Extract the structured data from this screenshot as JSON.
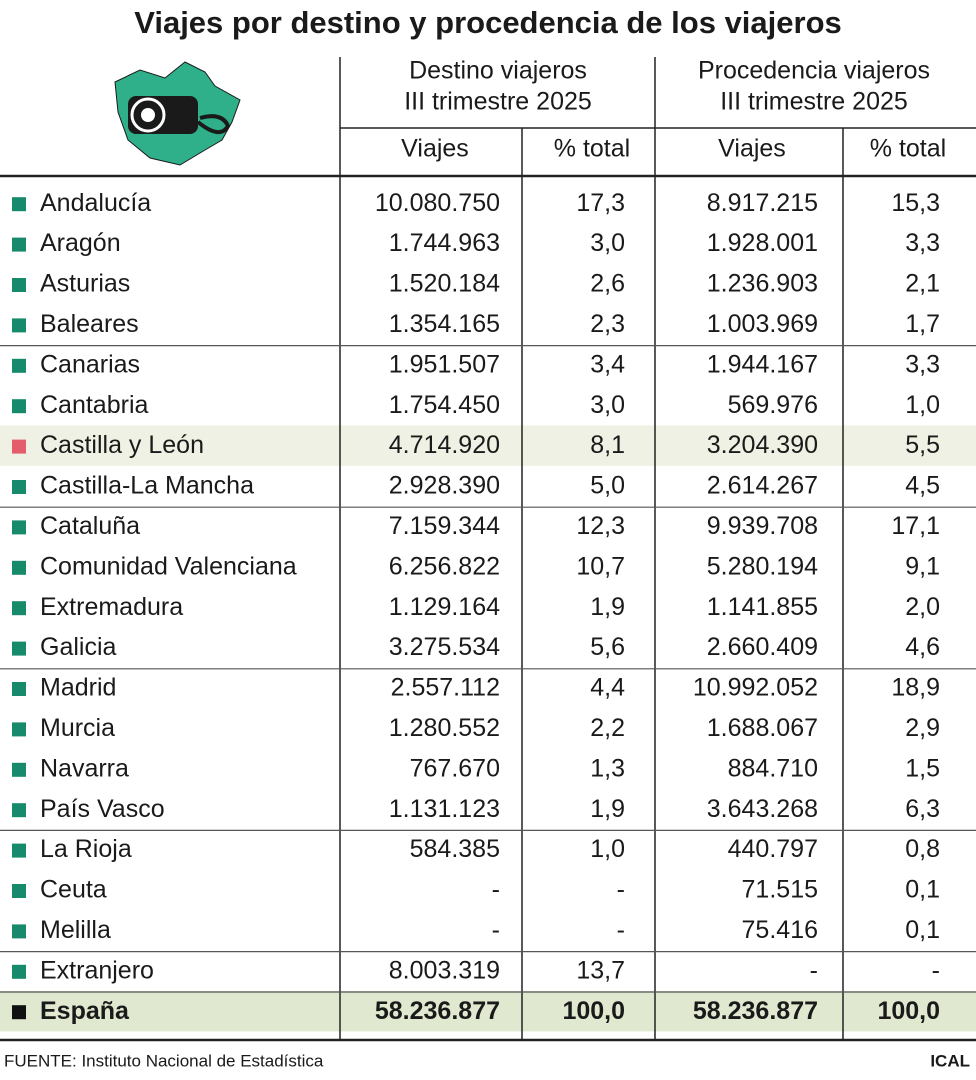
{
  "title": "Viajes por destino y procedencia de los viajeros",
  "table": {
    "groups": [
      {
        "title": "Destino viajeros",
        "subtitle": "III trimestre 2025"
      },
      {
        "title": "Procedencia viajeros",
        "subtitle": "III trimestre 2025"
      }
    ],
    "columns": [
      "Viajes",
      "% total",
      "Viajes",
      "% total"
    ],
    "rows": [
      [
        "Andalucía",
        "10.080.750",
        "17,3",
        "8.917.215",
        "15,3"
      ],
      [
        "Aragón",
        "1.744.963",
        "3,0",
        "1.928.001",
        "3,3"
      ],
      [
        "Asturias",
        "1.520.184",
        "2,6",
        "1.236.903",
        "2,1"
      ],
      [
        "Baleares",
        "1.354.165",
        "2,3",
        "1.003.969",
        "1,7"
      ],
      [
        "Canarias",
        "1.951.507",
        "3,4",
        "1.944.167",
        "3,3"
      ],
      [
        "Cantabria",
        "1.754.450",
        "3,0",
        "569.976",
        "1,0"
      ],
      [
        "Castilla y León",
        "4.714.920",
        "8,1",
        "3.204.390",
        "5,5"
      ],
      [
        "Castilla-La Mancha",
        "2.928.390",
        "5,0",
        "2.614.267",
        "4,5"
      ],
      [
        "Cataluña",
        "7.159.344",
        "12,3",
        "9.939.708",
        "17,1"
      ],
      [
        "Comunidad Valenciana",
        "6.256.822",
        "10,7",
        "5.280.194",
        "9,1"
      ],
      [
        "Extremadura",
        "1.129.164",
        "1,9",
        "1.141.855",
        "2,0"
      ],
      [
        "Galicia",
        "3.275.534",
        "5,6",
        "2.660.409",
        "4,6"
      ],
      [
        "Madrid",
        "2.557.112",
        "4,4",
        "10.992.052",
        "18,9"
      ],
      [
        "Murcia",
        "1.280.552",
        "2,2",
        "1.688.067",
        "2,9"
      ],
      [
        "Navarra",
        "767.670",
        "1,3",
        "884.710",
        "1,5"
      ],
      [
        "País Vasco",
        "1.131.123",
        "1,9",
        "3.643.268",
        "6,3"
      ],
      [
        "La Rioja",
        "584.385",
        "1,0",
        "440.797",
        "0,8"
      ],
      [
        "Ceuta",
        "-",
        "-",
        "71.515",
        "0,1"
      ],
      [
        "Melilla",
        "-",
        "-",
        "75.416",
        "0,1"
      ],
      [
        "Extranjero",
        "8.003.319",
        "13,7",
        "-",
        "-"
      ],
      [
        "España",
        "58.236.877",
        "100,0",
        "58.236.877",
        "100,0"
      ]
    ]
  },
  "footer": {
    "source": "FUENTE: Instituto Nacional de Estadística",
    "credit": "ICAL"
  }
}
